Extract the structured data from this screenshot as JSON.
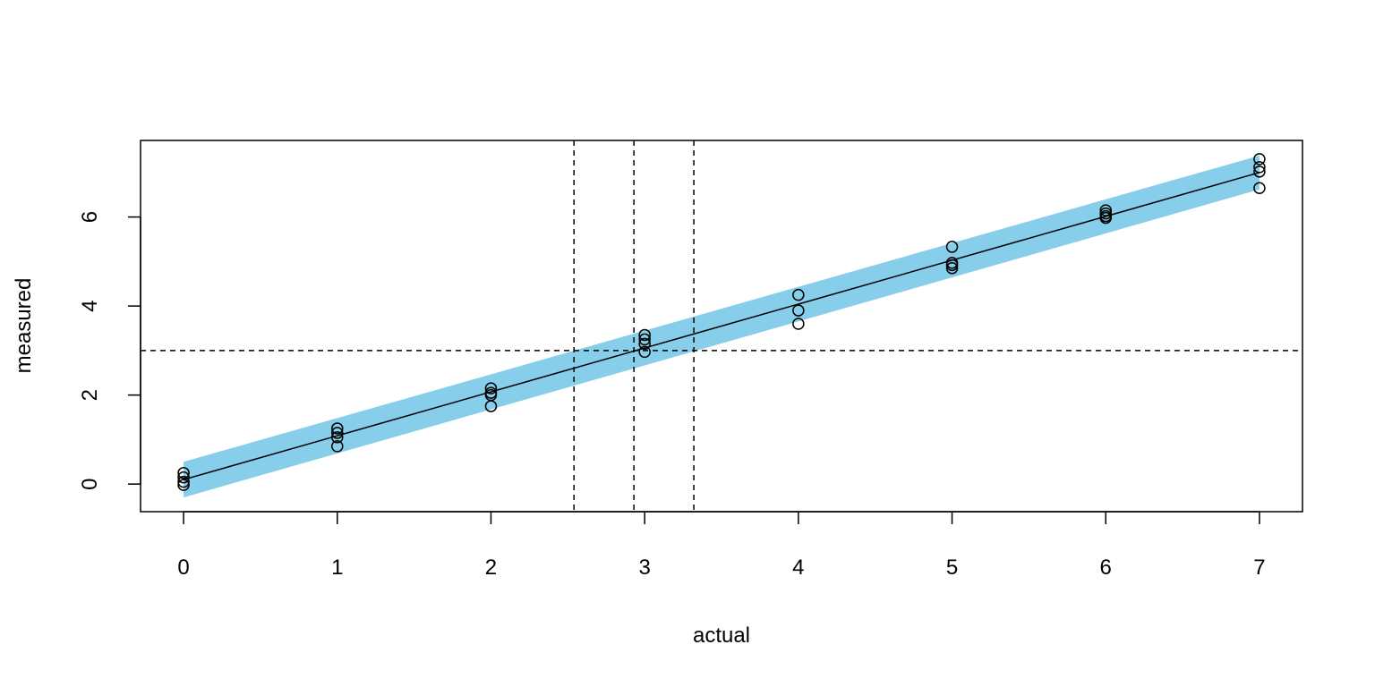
{
  "chart_data": {
    "type": "scatter",
    "title": "",
    "xlabel": "actual",
    "ylabel": "measured",
    "xlim": [
      -0.28,
      7.28
    ],
    "ylim": [
      -0.62,
      7.72
    ],
    "x_ticks": [
      0,
      1,
      2,
      3,
      4,
      5,
      6,
      7
    ],
    "y_ticks": [
      0,
      2,
      4,
      6
    ],
    "grid": false,
    "points": [
      {
        "x": 0,
        "y": 0.25
      },
      {
        "x": 0,
        "y": 0.15
      },
      {
        "x": 0,
        "y": 0.05
      },
      {
        "x": 0,
        "y": -0.02
      },
      {
        "x": 1,
        "y": 1.25
      },
      {
        "x": 1,
        "y": 1.15
      },
      {
        "x": 1,
        "y": 1.05
      },
      {
        "x": 1,
        "y": 0.85
      },
      {
        "x": 2,
        "y": 2.15
      },
      {
        "x": 2,
        "y": 2.05
      },
      {
        "x": 2,
        "y": 2.0
      },
      {
        "x": 2,
        "y": 1.75
      },
      {
        "x": 3,
        "y": 3.35
      },
      {
        "x": 3,
        "y": 3.25
      },
      {
        "x": 3,
        "y": 3.15
      },
      {
        "x": 3,
        "y": 2.97
      },
      {
        "x": 4,
        "y": 4.25
      },
      {
        "x": 4,
        "y": 3.9
      },
      {
        "x": 4,
        "y": 3.6
      },
      {
        "x": 5,
        "y": 5.33
      },
      {
        "x": 5,
        "y": 4.97
      },
      {
        "x": 5,
        "y": 4.92
      },
      {
        "x": 5,
        "y": 4.85
      },
      {
        "x": 6,
        "y": 6.15
      },
      {
        "x": 6,
        "y": 6.08
      },
      {
        "x": 6,
        "y": 6.02
      },
      {
        "x": 6,
        "y": 5.98
      },
      {
        "x": 7,
        "y": 7.3
      },
      {
        "x": 7,
        "y": 7.12
      },
      {
        "x": 7,
        "y": 7.02
      },
      {
        "x": 7,
        "y": 6.65
      }
    ],
    "fit_line": {
      "x": [
        0,
        7
      ],
      "y": [
        0.1,
        7.0
      ]
    },
    "band": {
      "x": [
        0,
        7
      ],
      "lower": [
        -0.3,
        6.62
      ],
      "upper": [
        0.5,
        7.38
      ],
      "color": "#87ceeb"
    },
    "hlines": [
      3.0
    ],
    "vlines": [
      2.54,
      2.93,
      3.32
    ]
  }
}
